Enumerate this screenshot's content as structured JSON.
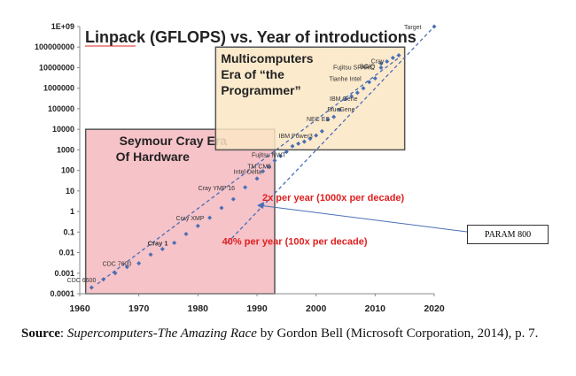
{
  "chart_data": {
    "type": "scatter",
    "title": "Linpack (GFLOPS) vs. Year of introductions",
    "xlim": [
      1960,
      2020
    ],
    "ylog": true,
    "ylim": [
      0.0001,
      1000000000
    ],
    "x_ticks": [
      "1960",
      "1970",
      "1980",
      "1990",
      "2000",
      "2010",
      "2020"
    ],
    "y_ticks": [
      "0.0001",
      "0.001",
      "0.01",
      "0.1",
      "1",
      "10",
      "100",
      "1000",
      "10000",
      "100000",
      "1000000",
      "10000000",
      "100000000",
      "1E+09"
    ],
    "eras": [
      {
        "line1": "Seymour Cray Era",
        "line2": "Of Hardware",
        "x_range": [
          1961,
          1993
        ],
        "y_range": [
          0.0001,
          10000
        ],
        "color": "#f4b8c0"
      },
      {
        "line1": "Multicomputers",
        "line2": "Era of “the",
        "line3": "Programmer”",
        "x_range": [
          1983,
          2015
        ],
        "y_range": [
          1000,
          100000000
        ],
        "color": "#fbe6c4"
      }
    ],
    "machines": [
      {
        "name": "CDC 6600",
        "x": 1964,
        "y": 0.0005
      },
      {
        "name": "CDC 7600",
        "x": 1970,
        "y": 0.003
      },
      {
        "name": "Cray 1",
        "x": 1976,
        "y": 0.03
      },
      {
        "name": "Cray XMP",
        "x": 1982,
        "y": 0.5
      },
      {
        "name": "Cray YMP 16",
        "x": 1988,
        "y": 15
      },
      {
        "name": "Intel Delta",
        "x": 1991,
        "y": 90
      },
      {
        "name": "TM CM5",
        "x": 1992,
        "y": 150
      },
      {
        "name": "Fujitsu NWT",
        "x": 1993,
        "y": 300
      },
      {
        "name": "IBM Power3",
        "x": 2000,
        "y": 5000
      },
      {
        "name": "NEC ES",
        "x": 2002,
        "y": 30000
      },
      {
        "name": "BlueGene",
        "x": 2004,
        "y": 90000
      },
      {
        "name": "IBM Gene",
        "x": 2005,
        "y": 300000
      },
      {
        "name": "Tianhe Intel",
        "x": 2010,
        "y": 3000000
      },
      {
        "name": "Fujitsu SPARC",
        "x": 2011,
        "y": 10000000
      },
      {
        "name": "Cray",
        "x": 2012,
        "y": 20000000
      },
      {
        "name": "BG/Q",
        "x": 2011,
        "y": 16000000
      },
      {
        "name": "Target",
        "x": 2020,
        "y": 1000000000
      }
    ],
    "trend_points": [
      {
        "x": 1962,
        "y": 0.0002
      },
      {
        "x": 1966,
        "y": 0.001
      },
      {
        "x": 1968,
        "y": 0.002
      },
      {
        "x": 1972,
        "y": 0.008
      },
      {
        "x": 1974,
        "y": 0.015
      },
      {
        "x": 1978,
        "y": 0.08
      },
      {
        "x": 1980,
        "y": 0.2
      },
      {
        "x": 1984,
        "y": 1.5
      },
      {
        "x": 1986,
        "y": 4
      },
      {
        "x": 1990,
        "y": 40
      },
      {
        "x": 1994,
        "y": 500
      },
      {
        "x": 1995,
        "y": 800
      },
      {
        "x": 1996,
        "y": 1500
      },
      {
        "x": 1997,
        "y": 2000
      },
      {
        "x": 1998,
        "y": 2500
      },
      {
        "x": 1999,
        "y": 3500
      },
      {
        "x": 2001,
        "y": 8000
      },
      {
        "x": 2003,
        "y": 40000
      },
      {
        "x": 2006,
        "y": 400000
      },
      {
        "x": 2007,
        "y": 600000
      },
      {
        "x": 2008,
        "y": 1000000
      },
      {
        "x": 2009,
        "y": 2000000
      },
      {
        "x": 2013,
        "y": 30000000
      },
      {
        "x": 2014,
        "y": 40000000
      }
    ],
    "trend_lines": [
      {
        "label": "40% per year (100x per decade)",
        "from": {
          "x": 1963,
          "y": 0.0003
        },
        "to": {
          "x": 2014,
          "y": 30000000
        }
      },
      {
        "label": "2x per year (1000x per decade)",
        "from": {
          "x": 1985,
          "y": 0.03
        },
        "to": {
          "x": 2020,
          "y": 1000000000
        }
      }
    ],
    "annotation": {
      "label": "PARAM 800",
      "x": 1990,
      "y": 2
    }
  },
  "caption": {
    "source_label": "Source",
    "sep": ": ",
    "title": "Supercomputers-The Amazing Race",
    "rest": " by Gordon Bell (Microsoft Corporation, 2014), p. 7."
  }
}
